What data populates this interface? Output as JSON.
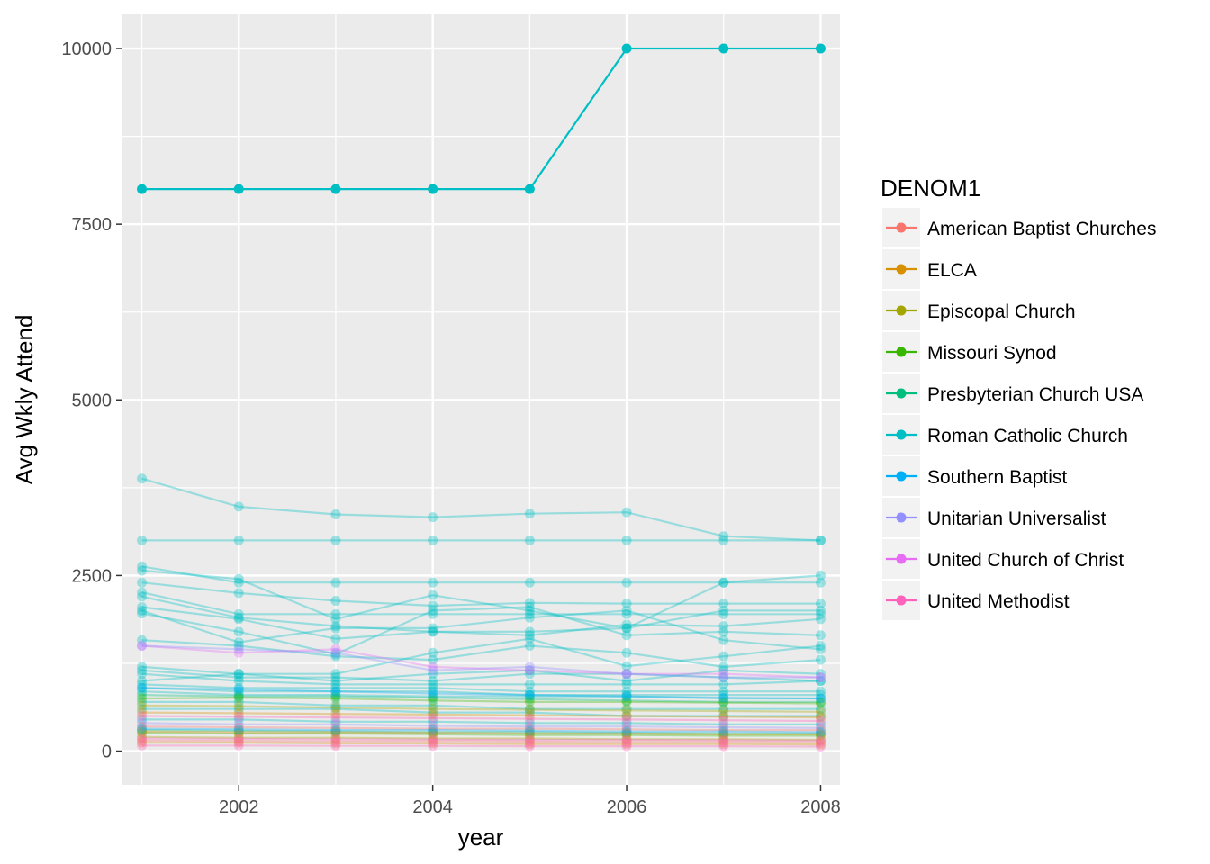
{
  "chart_data": {
    "type": "line",
    "xlabel": "year",
    "ylabel": "Avg Wkly Attend",
    "xlim": [
      2000.8,
      2008.2
    ],
    "ylim": [
      -480,
      10500
    ],
    "x_ticks": [
      2002,
      2004,
      2006,
      2008
    ],
    "x_minor_ticks": [
      2001,
      2003,
      2005,
      2007
    ],
    "y_ticks": [
      0,
      2500,
      5000,
      7500,
      10000
    ],
    "y_minor_ticks": [
      1250,
      3750,
      6250,
      8750
    ],
    "grid": true,
    "legend": {
      "title": "DENOM1",
      "position": "right",
      "entries": [
        {
          "name": "American Baptist Churches",
          "color": "#F8766D"
        },
        {
          "name": "ELCA",
          "color": "#D89000"
        },
        {
          "name": "Episcopal Church",
          "color": "#A3A500"
        },
        {
          "name": "Missouri Synod",
          "color": "#39B600"
        },
        {
          "name": "Presbyterian Church USA",
          "color": "#00BF7D"
        },
        {
          "name": "Roman Catholic Church",
          "color": "#00BFC4"
        },
        {
          "name": "Southern Baptist",
          "color": "#00B0F6"
        },
        {
          "name": "Unitarian Universalist",
          "color": "#9590FF"
        },
        {
          "name": "United Church of Christ",
          "color": "#E76BF3"
        },
        {
          "name": "United Methodist",
          "color": "#FF62BC"
        }
      ]
    },
    "x": [
      2001,
      2002,
      2003,
      2004,
      2005,
      2006,
      2007,
      2008
    ],
    "series": [
      {
        "denom": "Roman Catholic Church",
        "values": [
          8000,
          8000,
          8000,
          8000,
          8000,
          10000,
          10000,
          10000
        ],
        "highlight": true
      },
      {
        "denom": "Roman Catholic Church",
        "values": [
          3880,
          3480,
          3370,
          3330,
          3380,
          3400,
          3060,
          3000
        ]
      },
      {
        "denom": "Roman Catholic Church",
        "values": [
          3000,
          3000,
          3000,
          3000,
          3000,
          3000,
          3000,
          3000
        ]
      },
      {
        "denom": "Roman Catholic Church",
        "values": [
          2630,
          2400,
          2400,
          2400,
          2400,
          2400,
          2400,
          2400
        ]
      },
      {
        "denom": "Roman Catholic Church",
        "values": [
          2570,
          2450,
          1880,
          2220,
          2000,
          1750,
          2400,
          2500
        ]
      },
      {
        "denom": "Roman Catholic Church",
        "values": [
          2400,
          2250,
          2140,
          2070,
          2110,
          2100,
          2100,
          2100
        ]
      },
      {
        "denom": "Roman Catholic Church",
        "values": [
          2260,
          1950,
          1950,
          1950,
          1950,
          1950,
          1950,
          1950
        ]
      },
      {
        "denom": "Roman Catholic Church",
        "values": [
          2200,
          1900,
          1780,
          1700,
          1650,
          1800,
          1780,
          1880
        ]
      },
      {
        "denom": "Roman Catholic Church",
        "values": [
          2050,
          1880,
          1600,
          1700,
          1700,
          1750,
          2000,
          2000
        ]
      },
      {
        "denom": "Roman Catholic Church",
        "values": [
          2000,
          1550,
          1750,
          1750,
          1900,
          2000,
          1580,
          1450
        ]
      },
      {
        "denom": "Roman Catholic Church",
        "values": [
          1960,
          1700,
          1380,
          2000,
          2050,
          1650,
          1700,
          1650
        ]
      },
      {
        "denom": "Roman Catholic Church",
        "values": [
          1580,
          1500,
          1350,
          1300,
          1500,
          1400,
          1200,
          1300
        ]
      },
      {
        "denom": "Roman Catholic Church",
        "values": [
          1200,
          1100,
          1100,
          1400,
          1600,
          1210,
          1350,
          1500
        ]
      },
      {
        "denom": "Roman Catholic Church",
        "values": [
          1150,
          1050,
          1050,
          1000,
          1100,
          1100,
          1050,
          1000
        ]
      },
      {
        "denom": "Roman Catholic Church",
        "values": [
          1100,
          1000,
          950,
          950,
          950,
          950,
          950,
          1000
        ]
      },
      {
        "denom": "Roman Catholic Church",
        "values": [
          1000,
          1100,
          1000,
          1100,
          1150,
          1000,
          1150,
          1100
        ]
      },
      {
        "denom": "Roman Catholic Church",
        "values": [
          950,
          900,
          900,
          900,
          850,
          850,
          850,
          850
        ]
      },
      {
        "denom": "Roman Catholic Church",
        "values": [
          900,
          850,
          850,
          850,
          800,
          800,
          800,
          800
        ]
      },
      {
        "denom": "Roman Catholic Church",
        "values": [
          850,
          800,
          800,
          780,
          780,
          780,
          750,
          750
        ]
      },
      {
        "denom": "Roman Catholic Church",
        "values": [
          700,
          700,
          650,
          650,
          600,
          600,
          600,
          600
        ]
      },
      {
        "denom": "Roman Catholic Church",
        "values": [
          600,
          600,
          600,
          550,
          550,
          500,
          500,
          500
        ]
      },
      {
        "denom": "Roman Catholic Church",
        "values": [
          450,
          450,
          420,
          420,
          400,
          400,
          380,
          380
        ]
      },
      {
        "denom": "United Church of Christ",
        "values": [
          1500,
          1400,
          1450,
          1200,
          1150,
          1100,
          1100,
          1050
        ]
      },
      {
        "denom": "Unitarian Universalist",
        "values": [
          1500,
          1450,
          1400,
          1150,
          1200,
          1100,
          1050,
          1050
        ]
      },
      {
        "denom": "Unitarian Universalist",
        "values": [
          400,
          380,
          380,
          360,
          350,
          350,
          340,
          330
        ]
      },
      {
        "denom": "Presbyterian Church USA",
        "values": [
          800,
          780,
          780,
          760,
          740,
          720,
          700,
          700
        ]
      },
      {
        "denom": "Presbyterian Church USA",
        "values": [
          300,
          290,
          280,
          270,
          270,
          260,
          250,
          250
        ]
      },
      {
        "denom": "Missouri Synod",
        "values": [
          750,
          760,
          750,
          720,
          700,
          700,
          690,
          680
        ]
      },
      {
        "denom": "Missouri Synod",
        "values": [
          260,
          250,
          250,
          240,
          230,
          230,
          220,
          220
        ]
      },
      {
        "denom": "Episcopal Church",
        "values": [
          650,
          640,
          620,
          600,
          590,
          580,
          570,
          560
        ]
      },
      {
        "denom": "Episcopal Church",
        "values": [
          200,
          190,
          190,
          180,
          180,
          170,
          170,
          160
        ]
      },
      {
        "denom": "ELCA",
        "values": [
          550,
          540,
          530,
          520,
          510,
          500,
          490,
          480
        ]
      },
      {
        "denom": "ELCA",
        "values": [
          280,
          270,
          270,
          260,
          250,
          250,
          240,
          240
        ]
      },
      {
        "denom": "ELCA",
        "values": [
          120,
          120,
          110,
          110,
          100,
          100,
          100,
          95
        ]
      },
      {
        "denom": "American Baptist Churches",
        "values": [
          350,
          340,
          330,
          320,
          320,
          310,
          300,
          300
        ]
      },
      {
        "denom": "American Baptist Churches",
        "values": [
          150,
          145,
          140,
          140,
          135,
          130,
          130,
          125
        ]
      },
      {
        "denom": "Southern Baptist",
        "values": [
          900,
          880,
          850,
          820,
          800,
          780,
          760,
          750
        ]
      },
      {
        "denom": "Southern Baptist",
        "values": [
          320,
          310,
          300,
          300,
          290,
          280,
          280,
          270
        ]
      },
      {
        "denom": "United Methodist",
        "values": [
          500,
          490,
          480,
          470,
          460,
          450,
          440,
          430
        ]
      },
      {
        "denom": "United Methodist",
        "values": [
          180,
          175,
          170,
          165,
          160,
          160,
          155,
          150
        ]
      },
      {
        "denom": "United Methodist",
        "values": [
          80,
          80,
          75,
          75,
          70,
          70,
          70,
          65
        ]
      }
    ]
  }
}
